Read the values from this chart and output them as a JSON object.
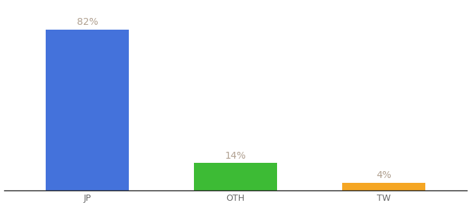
{
  "categories": [
    "JP",
    "OTH",
    "TW"
  ],
  "values": [
    82,
    14,
    4
  ],
  "bar_colors": [
    "#4472db",
    "#3dbb35",
    "#f5a623"
  ],
  "labels": [
    "82%",
    "14%",
    "4%"
  ],
  "background_color": "#ffffff",
  "label_color": "#b0a090",
  "label_fontsize": 10,
  "tick_fontsize": 9,
  "ylim": [
    0,
    95
  ],
  "bar_positions": [
    0.18,
    0.5,
    0.82
  ],
  "bar_width": 0.18
}
